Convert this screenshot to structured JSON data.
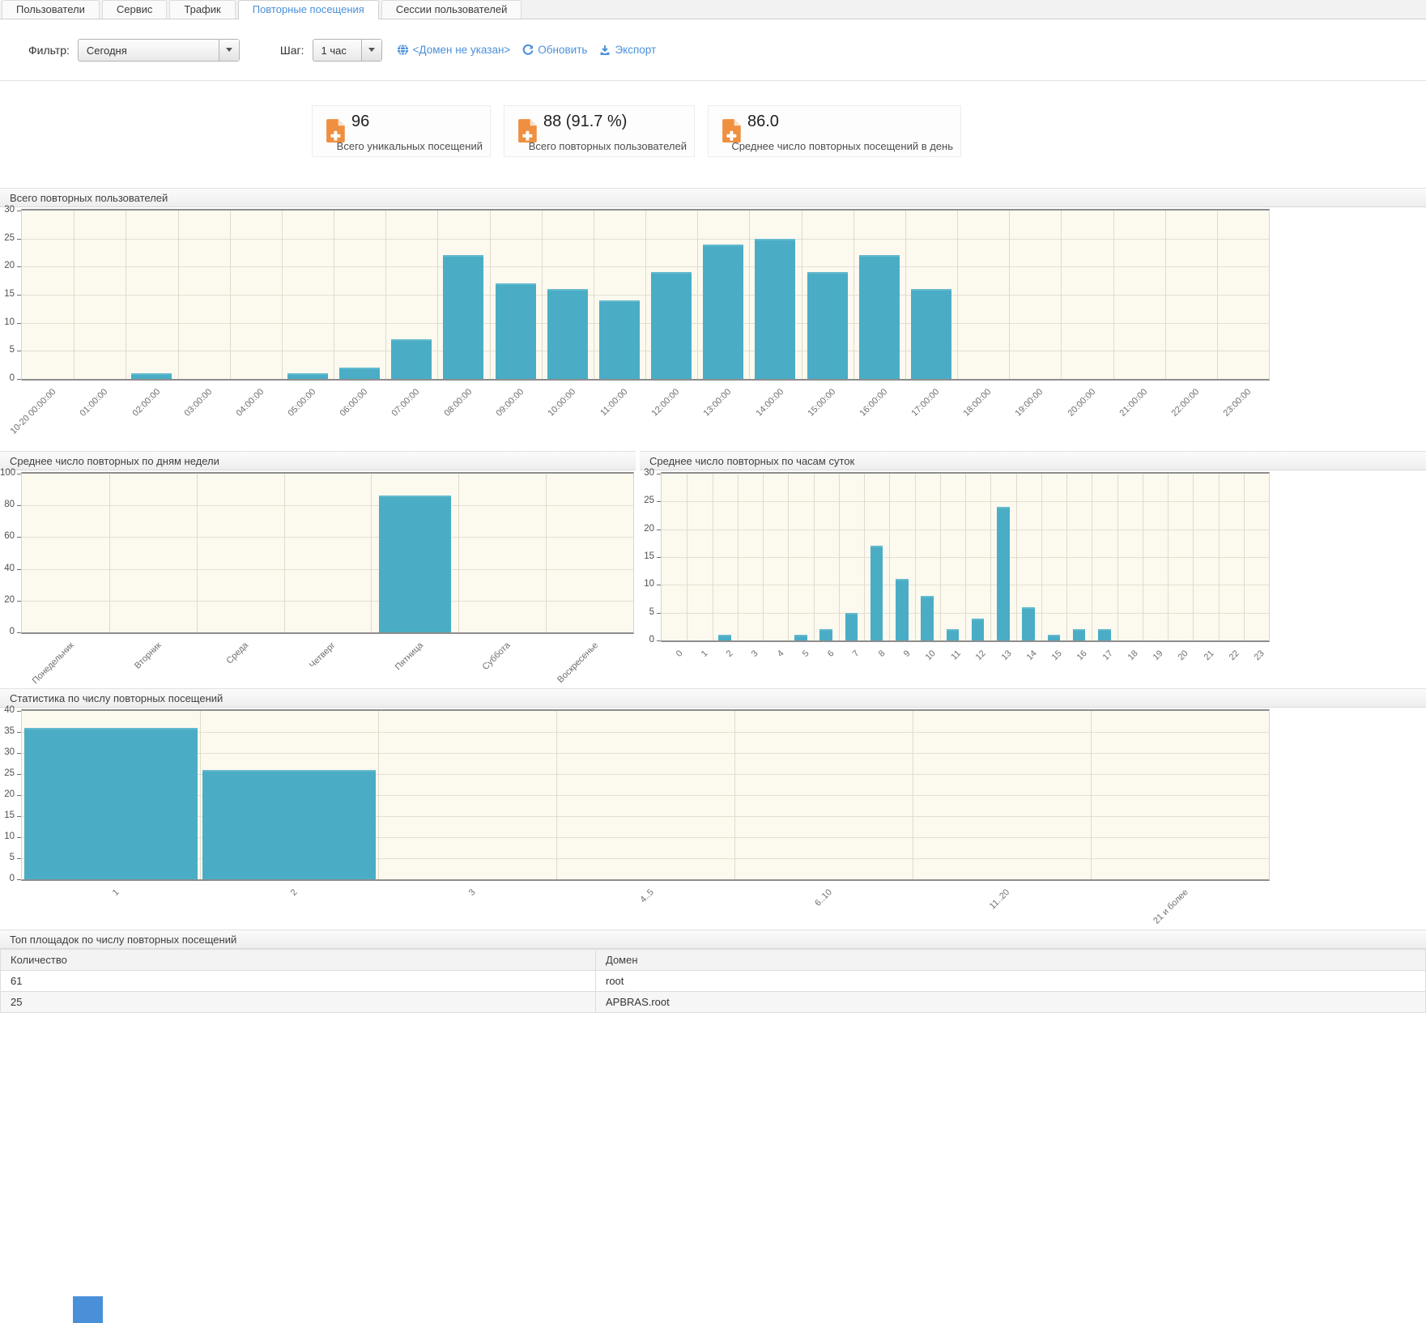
{
  "tabs": [
    {
      "label": "Пользователи",
      "active": false
    },
    {
      "label": "Сервис",
      "active": false
    },
    {
      "label": "Трафик",
      "active": false
    },
    {
      "label": "Повторные посещения",
      "active": true
    },
    {
      "label": "Сессии пользователей",
      "active": false
    }
  ],
  "filter_bar": {
    "filter_label": "Фильтр:",
    "filter_value": "Сегодня",
    "step_label": "Шаг:",
    "step_value": "1 час",
    "domain_link": "<Домен не указан>",
    "refresh_link": "Обновить",
    "export_link": "Экспорт"
  },
  "stat_cards": [
    {
      "icon": "file-plus-icon",
      "value": "96",
      "label": "Всего уникальных посещений"
    },
    {
      "icon": "file-plus-icon",
      "value": "88 (91.7 %)",
      "label": "Всего повторных пользователей"
    },
    {
      "icon": "file-plus-icon",
      "value": "86.0",
      "label": "Среднее число повторных посещений в день"
    }
  ],
  "chart_data": [
    {
      "type": "bar",
      "title": "Всего повторных пользователей",
      "categories": [
        "10-20 00:00:00",
        "01:00:00",
        "02:00:00",
        "03:00:00",
        "04:00:00",
        "05:00:00",
        "06:00:00",
        "07:00:00",
        "08:00:00",
        "09:00:00",
        "10:00:00",
        "11:00:00",
        "12:00:00",
        "13:00:00",
        "14:00:00",
        "15:00:00",
        "16:00:00",
        "17:00:00",
        "18:00:00",
        "19:00:00",
        "20:00:00",
        "21:00:00",
        "22:00:00",
        "23:00:00"
      ],
      "values": [
        0,
        0,
        1,
        0,
        0,
        1,
        2,
        7,
        22,
        17,
        16,
        14,
        19,
        24,
        25,
        19,
        22,
        16,
        0,
        0,
        0,
        0,
        0,
        0
      ],
      "xlabel": "",
      "ylabel": "",
      "ylim": [
        0,
        30
      ],
      "ytick_step": 5,
      "grid": true,
      "legend": "none"
    },
    {
      "type": "bar",
      "title": "Среднее число повторных по дням недели",
      "categories": [
        "Понедельник",
        "Вторник",
        "Среда",
        "Четверг",
        "Пятница",
        "Суббота",
        "Воскресенье"
      ],
      "values": [
        0,
        0,
        0,
        0,
        86,
        0,
        0
      ],
      "xlabel": "",
      "ylabel": "",
      "ylim": [
        0,
        100
      ],
      "ytick_step": 20,
      "grid": true,
      "legend": "none"
    },
    {
      "type": "bar",
      "title": "Среднее число повторных по часам суток",
      "categories": [
        "0",
        "1",
        "2",
        "3",
        "4",
        "5",
        "6",
        "7",
        "8",
        "9",
        "10",
        "11",
        "12",
        "13",
        "14",
        "15",
        "16",
        "17",
        "18",
        "19",
        "20",
        "21",
        "22",
        "23"
      ],
      "values": [
        0,
        0,
        1,
        0,
        0,
        1,
        2,
        5,
        17,
        11,
        8,
        2,
        4,
        24,
        6,
        1,
        2,
        2,
        0,
        0,
        0,
        0,
        0,
        0
      ],
      "xlabel": "",
      "ylabel": "",
      "ylim": [
        0,
        30
      ],
      "ytick_step": 5,
      "grid": true,
      "legend": "none"
    },
    {
      "type": "bar",
      "title": "Статистика по числу повторных посещений",
      "categories": [
        "1",
        "2",
        "3",
        "4..5",
        "6..10",
        "11..20",
        "21 и более"
      ],
      "values": [
        36,
        26,
        0,
        0,
        0,
        0,
        0
      ],
      "xlabel": "",
      "ylabel": "",
      "ylim": [
        0,
        40
      ],
      "ytick_step": 5,
      "grid": true,
      "legend": "none"
    }
  ],
  "table": {
    "title": "Топ площадок по числу повторных посещений",
    "columns": [
      "Количество",
      "Домен"
    ],
    "rows": [
      [
        "61",
        "root"
      ],
      [
        "25",
        "APBRAS.root"
      ]
    ]
  },
  "colors": {
    "accent_blue": "#4a90d9",
    "bar_teal": "#4aadc5",
    "icon_orange": "#ef8f40",
    "plot_background": "#fcf9ef"
  }
}
